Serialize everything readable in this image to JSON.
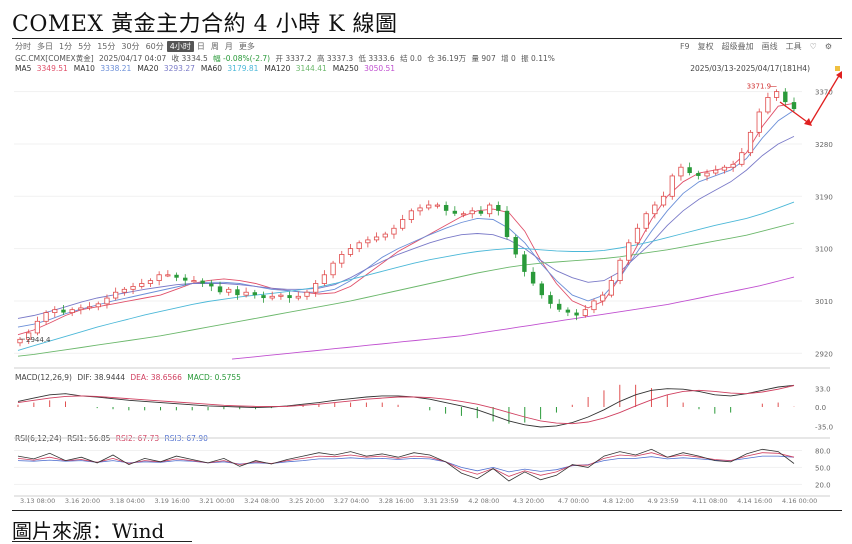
{
  "header": {
    "title": "COMEX 黃金主力合約 4 小時 K 線圖"
  },
  "footer": {
    "source": "圖片來源：Wind"
  },
  "toolbar": {
    "tabs": [
      "分时",
      "多日",
      "1分",
      "5分",
      "15分",
      "30分",
      "60分",
      "4小时",
      "日",
      "周",
      "月",
      "更多"
    ],
    "active_index": 7,
    "right_items": [
      "F9",
      "复权",
      "超级叠加",
      "画线",
      "工具"
    ],
    "right_icons": [
      "heart-icon",
      "gear-icon"
    ]
  },
  "quote": {
    "symbol": "GC.CMX[COMEX黄金]",
    "datetime": "2025/04/17 04:07",
    "close": "收 3334.5",
    "change": "幅 -0.08%(-2.7)",
    "open": "开 3337.2",
    "high": "高 3337.3",
    "low": "低 3333.6",
    "settle": "结 0.0",
    "oi": "仓 36.19万",
    "volume": "量 907",
    "oi_change": "增 0",
    "amplitude": "振 0.11%"
  },
  "ma_legend": [
    {
      "label": "MA5",
      "value": "3349.51",
      "color": "#e0506a"
    },
    {
      "label": "MA10",
      "value": "3338.21",
      "color": "#6b8fd8"
    },
    {
      "label": "MA20",
      "value": "3293.27",
      "color": "#7a7ac8"
    },
    {
      "label": "MA60",
      "value": "3179.81",
      "color": "#4cb8d8"
    },
    {
      "label": "MA120",
      "value": "3144.41",
      "color": "#6cb86c"
    },
    {
      "label": "MA250",
      "value": "3050.51",
      "color": "#c050d0"
    }
  ],
  "date_range": "2025/03/13-2025/04/17(181H4)",
  "macd_legend": {
    "name": "MACD(12,26,9)",
    "dif": "DIF: 38.9444",
    "dea": "DEA: 38.6566",
    "macd": "MACD: 0.5755"
  },
  "rsi_legend": {
    "name": "RSI(6,12,24)",
    "rsi1": "RSI1: 56.85",
    "rsi2": "RSI2: 67.73",
    "rsi3": "RSI3: 67.90"
  },
  "chart_data": {
    "type": "candlestick",
    "x_tick_labels": [
      "3.13 08:00",
      "3.16 20:00",
      "3.18 04:00",
      "3.19 16:00",
      "3.21 00:00",
      "3.24 08:00",
      "3.25 20:00",
      "3.27 04:00",
      "3.28 16:00",
      "3.31 23:59",
      "4.2 08:00",
      "4.3 20:00",
      "4.7 00:00",
      "4.8 12:00",
      "4.9 23:59",
      "4.11 08:00",
      "4.14 16:00",
      "4.16 00:00"
    ],
    "price_ticks": [
      2920,
      3010,
      3100,
      3190,
      3280,
      3370
    ],
    "price_tick_labels": [
      "2920",
      "3010",
      "3100",
      "3190",
      "3280",
      "3370"
    ],
    "ylim": [
      2905,
      3390
    ],
    "annotations": {
      "high_label": "3371.9",
      "high_value": 3371.9,
      "low_label": "2944.4",
      "low_value": 2944.4
    },
    "close_path": [
      2944,
      2955,
      2975,
      2990,
      2995,
      2990,
      2995,
      2998,
      3000,
      3005,
      3015,
      3025,
      3030,
      3035,
      3040,
      3045,
      3055,
      3055,
      3050,
      3045,
      3045,
      3040,
      3035,
      3025,
      3030,
      3020,
      3025,
      3020,
      3015,
      3018,
      3020,
      3015,
      3018,
      3025,
      3040,
      3055,
      3075,
      3090,
      3100,
      3110,
      3115,
      3120,
      3125,
      3135,
      3150,
      3165,
      3170,
      3175,
      3175,
      3165,
      3160,
      3160,
      3165,
      3160,
      3175,
      3165,
      3120,
      3090,
      3060,
      3040,
      3020,
      3005,
      2995,
      2990,
      2985,
      2995,
      3010,
      3020,
      3045,
      3080,
      3110,
      3135,
      3160,
      3175,
      3190,
      3225,
      3240,
      3230,
      3225,
      3230,
      3235,
      3240,
      3245,
      3265,
      3300,
      3335,
      3360,
      3370,
      3352,
      3340
    ],
    "ma_series": [
      {
        "name": "MA5",
        "color": "#e0506a",
        "values": [
          2952,
          2960,
          2972,
          2985,
          2995,
          3000,
          3005,
          3010,
          3015,
          3020,
          3030,
          3040,
          3045,
          3048,
          3045,
          3040,
          3032,
          3028,
          3025,
          3022,
          3024,
          3035,
          3055,
          3075,
          3095,
          3110,
          3125,
          3140,
          3155,
          3165,
          3168,
          3162,
          3130,
          3080,
          3040,
          3010,
          2998,
          3010,
          3050,
          3100,
          3150,
          3190,
          3215,
          3230,
          3235,
          3240,
          3265,
          3310,
          3345,
          3350
        ]
      },
      {
        "name": "MA10",
        "color": "#6b8fd8",
        "values": [
          2965,
          2970,
          2978,
          2988,
          2996,
          3003,
          3010,
          3016,
          3022,
          3028,
          3034,
          3040,
          3042,
          3042,
          3040,
          3035,
          3030,
          3028,
          3025,
          3025,
          3030,
          3045,
          3065,
          3085,
          3100,
          3112,
          3124,
          3135,
          3145,
          3152,
          3150,
          3135,
          3110,
          3075,
          3045,
          3020,
          3010,
          3020,
          3050,
          3090,
          3130,
          3165,
          3195,
          3215,
          3225,
          3235,
          3255,
          3290,
          3320,
          3338
        ]
      },
      {
        "name": "MA20",
        "color": "#7a7ac8",
        "values": [
          2980,
          2985,
          2992,
          3000,
          3008,
          3015,
          3020,
          3025,
          3030,
          3034,
          3038,
          3040,
          3040,
          3040,
          3038,
          3035,
          3032,
          3030,
          3030,
          3032,
          3038,
          3050,
          3065,
          3078,
          3090,
          3100,
          3110,
          3118,
          3124,
          3126,
          3124,
          3115,
          3100,
          3080,
          3062,
          3050,
          3042,
          3045,
          3060,
          3085,
          3110,
          3140,
          3165,
          3185,
          3200,
          3215,
          3235,
          3260,
          3280,
          3293
        ]
      },
      {
        "name": "MA60",
        "color": "#4cb8d8",
        "values": [
          2925,
          2933,
          2941,
          2949,
          2957,
          2965,
          2972,
          2979,
          2986,
          2992,
          2998,
          3004,
          3009,
          3013,
          3017,
          3020,
          3023,
          3026,
          3030,
          3034,
          3040,
          3047,
          3054,
          3061,
          3068,
          3075,
          3081,
          3086,
          3091,
          3095,
          3098,
          3100,
          3100,
          3098,
          3096,
          3095,
          3095,
          3097,
          3101,
          3106,
          3112,
          3119,
          3126,
          3133,
          3140,
          3146,
          3152,
          3160,
          3170,
          3180
        ]
      },
      {
        "name": "MA120",
        "color": "#6cb86c",
        "values": [
          2915,
          2918,
          2922,
          2926,
          2930,
          2934,
          2938,
          2942,
          2946,
          2950,
          2955,
          2960,
          2965,
          2970,
          2975,
          2980,
          2985,
          2990,
          2995,
          3000,
          3005,
          3010,
          3016,
          3022,
          3028,
          3034,
          3040,
          3046,
          3052,
          3058,
          3063,
          3068,
          3072,
          3075,
          3077,
          3079,
          3081,
          3083,
          3086,
          3090,
          3094,
          3098,
          3103,
          3108,
          3113,
          3118,
          3123,
          3130,
          3137,
          3144
        ]
      },
      {
        "name": "MA250",
        "color": "#c050d0",
        "values": [
          2910,
          2912,
          2914,
          2916,
          2918,
          2920,
          2922,
          2924,
          2926,
          2928,
          2930,
          2932,
          2934,
          2936,
          2938,
          2940,
          2942,
          2944,
          2946,
          2948,
          2950,
          2953,
          2956,
          2959,
          2962,
          2965,
          2968,
          2971,
          2974,
          2977,
          2980,
          2983,
          2986,
          2989,
          2992,
          2995,
          2998,
          3001,
          3004,
          3008,
          3012,
          3016,
          3020,
          3024,
          3028,
          3032,
          3036,
          3041,
          3046,
          3051
        ]
      }
    ],
    "macd": {
      "yticks": [
        33.0,
        0.0,
        -35.0
      ],
      "ytick_labels": [
        "33.0",
        "0.0",
        "-35.0"
      ],
      "ylim": [
        -45,
        45
      ],
      "dif": [
        10,
        16,
        22,
        24,
        20,
        18,
        15,
        12,
        10,
        8,
        6,
        4,
        2,
        1,
        0,
        -1,
        0,
        2,
        5,
        8,
        12,
        15,
        18,
        20,
        20,
        18,
        14,
        8,
        2,
        -5,
        -15,
        -25,
        -32,
        -36,
        -34,
        -28,
        -18,
        -5,
        10,
        22,
        30,
        33,
        32,
        28,
        22,
        20,
        24,
        30,
        36,
        39
      ],
      "dea": [
        8,
        12,
        16,
        19,
        20,
        19,
        17,
        15,
        13,
        11,
        9,
        7,
        5,
        3,
        2,
        1,
        1,
        1,
        3,
        5,
        8,
        11,
        14,
        16,
        18,
        18,
        17,
        14,
        10,
        5,
        -2,
        -10,
        -18,
        -25,
        -29,
        -30,
        -27,
        -20,
        -10,
        2,
        13,
        22,
        28,
        30,
        28,
        25,
        24,
        27,
        32,
        38.7
      ]
    },
    "rsi": {
      "yticks": [
        80.0,
        50.0,
        20.0
      ],
      "ytick_labels": [
        "80.0",
        "50.0",
        "20.0"
      ],
      "ylim": [
        10,
        95
      ],
      "rsi1": [
        70,
        65,
        75,
        62,
        68,
        58,
        72,
        55,
        66,
        60,
        70,
        64,
        58,
        66,
        52,
        62,
        56,
        64,
        70,
        76,
        72,
        78,
        70,
        74,
        68,
        76,
        72,
        60,
        40,
        30,
        48,
        26,
        42,
        28,
        36,
        55,
        50,
        70,
        78,
        72,
        82,
        68,
        76,
        70,
        62,
        60,
        74,
        82,
        78,
        57
      ],
      "rsi2": [
        66,
        63,
        68,
        62,
        64,
        59,
        66,
        57,
        62,
        60,
        65,
        62,
        58,
        62,
        55,
        60,
        57,
        62,
        66,
        70,
        69,
        72,
        68,
        70,
        66,
        70,
        68,
        60,
        46,
        38,
        48,
        34,
        44,
        36,
        42,
        54,
        54,
        66,
        72,
        70,
        76,
        68,
        72,
        68,
        64,
        62,
        70,
        76,
        75,
        68
      ],
      "rsi3": [
        62,
        61,
        63,
        61,
        62,
        59,
        62,
        58,
        60,
        59,
        62,
        61,
        58,
        60,
        56,
        58,
        57,
        60,
        62,
        65,
        65,
        67,
        65,
        66,
        64,
        66,
        65,
        60,
        50,
        44,
        50,
        42,
        47,
        43,
        46,
        53,
        55,
        62,
        66,
        66,
        69,
        65,
        67,
        65,
        63,
        62,
        66,
        70,
        70,
        68
      ]
    }
  }
}
